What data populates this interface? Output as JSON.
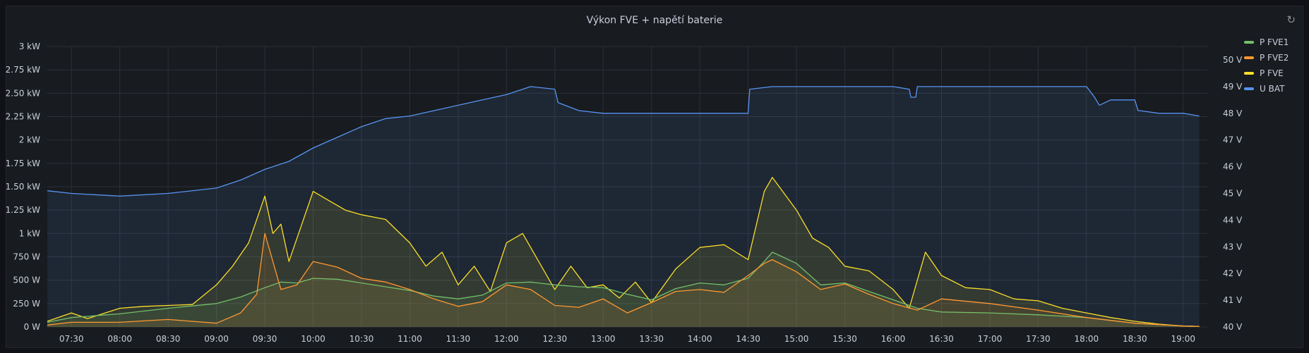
{
  "panel": {
    "title": "Výkon FVE + napětí baterie"
  },
  "icons": {
    "refresh": "refresh-icon"
  },
  "chart_data": {
    "type": "area",
    "y_left": {
      "min": 0,
      "max": 3000,
      "ticks": [
        "0 W",
        "250 W",
        "500 W",
        "750 W",
        "1 kW",
        "1.25 kW",
        "1.50 kW",
        "1.75 kW",
        "2 kW",
        "2.25 kW",
        "2.50 kW",
        "2.75 kW",
        "3 kW"
      ]
    },
    "y_right": {
      "min": 40,
      "max": 50.5,
      "ticks": [
        "40 V",
        "41 V",
        "42 V",
        "43 V",
        "44 V",
        "45 V",
        "46 V",
        "47 V",
        "48 V",
        "49 V",
        "50 V"
      ]
    },
    "x_range": [
      "07:15",
      "19:15"
    ],
    "x_ticks": [
      "07:30",
      "08:00",
      "08:30",
      "09:00",
      "09:30",
      "10:00",
      "10:30",
      "11:00",
      "11:30",
      "12:00",
      "12:30",
      "13:00",
      "13:30",
      "14:00",
      "14:30",
      "15:00",
      "15:30",
      "16:00",
      "16:30",
      "17:00",
      "17:30",
      "18:00",
      "18:30",
      "19:00"
    ],
    "legend": [
      "P FVE1",
      "P FVE2",
      "P FVE",
      "U BAT"
    ],
    "grid": true,
    "series": [
      {
        "name": "U BAT",
        "axis": "right",
        "color": "#5794f2",
        "x": [
          "07:15",
          "07:30",
          "08:00",
          "08:30",
          "09:00",
          "09:15",
          "09:30",
          "09:45",
          "10:00",
          "10:15",
          "10:30",
          "10:45",
          "11:00",
          "11:15",
          "11:30",
          "11:45",
          "12:00",
          "12:15",
          "12:30",
          "12:32",
          "12:45",
          "13:00",
          "13:30",
          "14:00",
          "14:30",
          "14:31",
          "14:45",
          "15:00",
          "15:30",
          "16:00",
          "16:10",
          "16:11",
          "16:14",
          "16:15",
          "16:30",
          "17:00",
          "17:30",
          "18:00",
          "18:05",
          "18:08",
          "18:15",
          "18:30",
          "18:32",
          "18:33",
          "18:45",
          "19:00",
          "19:10"
        ],
        "values": [
          45.1,
          45.0,
          44.9,
          45.0,
          45.2,
          45.5,
          45.9,
          46.2,
          46.7,
          47.1,
          47.5,
          47.8,
          47.9,
          48.1,
          48.3,
          48.5,
          48.7,
          49.0,
          48.9,
          48.4,
          48.1,
          48.0,
          48.0,
          48.0,
          48.0,
          48.9,
          49.0,
          49.0,
          49.0,
          49.0,
          48.9,
          48.6,
          48.6,
          49.0,
          49.0,
          49.0,
          49.0,
          49.0,
          48.6,
          48.3,
          48.5,
          48.5,
          48.1,
          48.1,
          48.0,
          48.0,
          47.9
        ]
      },
      {
        "name": "P FVE",
        "axis": "left",
        "color": "#fade2a",
        "x": [
          "07:15",
          "07:30",
          "07:40",
          "08:00",
          "08:15",
          "08:30",
          "08:45",
          "09:00",
          "09:10",
          "09:20",
          "09:30",
          "09:35",
          "09:40",
          "09:45",
          "10:00",
          "10:10",
          "10:20",
          "10:30",
          "10:45",
          "11:00",
          "11:10",
          "11:20",
          "11:30",
          "11:40",
          "11:50",
          "12:00",
          "12:10",
          "12:20",
          "12:30",
          "12:40",
          "12:50",
          "13:00",
          "13:10",
          "13:20",
          "13:30",
          "13:45",
          "14:00",
          "14:15",
          "14:30",
          "14:40",
          "14:45",
          "15:00",
          "15:10",
          "15:20",
          "15:30",
          "15:45",
          "16:00",
          "16:10",
          "16:20",
          "16:30",
          "16:45",
          "17:00",
          "17:15",
          "17:30",
          "17:45",
          "18:00",
          "18:15",
          "18:30",
          "18:45",
          "19:00",
          "19:10"
        ],
        "values": [
          60,
          150,
          90,
          200,
          220,
          230,
          240,
          450,
          650,
          900,
          1400,
          1000,
          1100,
          700,
          1450,
          1350,
          1250,
          1200,
          1150,
          900,
          650,
          800,
          450,
          650,
          380,
          900,
          1000,
          700,
          400,
          650,
          420,
          450,
          310,
          480,
          260,
          620,
          850,
          880,
          720,
          1450,
          1600,
          1250,
          950,
          850,
          650,
          600,
          400,
          200,
          800,
          550,
          420,
          400,
          300,
          280,
          200,
          150,
          100,
          60,
          30,
          10,
          5
        ]
      },
      {
        "name": "P FVE1",
        "axis": "left",
        "color": "#73bf69",
        "x": [
          "07:15",
          "07:30",
          "08:00",
          "08:30",
          "09:00",
          "09:15",
          "09:30",
          "09:40",
          "09:50",
          "10:00",
          "10:15",
          "10:30",
          "10:45",
          "11:00",
          "11:15",
          "11:30",
          "11:45",
          "12:00",
          "12:15",
          "12:30",
          "12:45",
          "13:00",
          "13:15",
          "13:30",
          "13:45",
          "14:00",
          "14:15",
          "14:30",
          "14:40",
          "14:45",
          "15:00",
          "15:15",
          "15:30",
          "15:45",
          "16:00",
          "16:15",
          "16:30",
          "17:00",
          "17:30",
          "18:00",
          "18:30",
          "19:00",
          "19:10"
        ],
        "values": [
          50,
          100,
          140,
          200,
          250,
          320,
          420,
          480,
          470,
          520,
          510,
          470,
          430,
          390,
          330,
          300,
          340,
          470,
          480,
          450,
          430,
          420,
          350,
          290,
          410,
          470,
          450,
          520,
          700,
          800,
          680,
          450,
          470,
          380,
          290,
          200,
          160,
          150,
          130,
          100,
          40,
          10,
          5
        ]
      },
      {
        "name": "P FVE2",
        "axis": "left",
        "color": "#ff9830",
        "x": [
          "07:15",
          "07:30",
          "08:00",
          "08:30",
          "09:00",
          "09:15",
          "09:25",
          "09:30",
          "09:40",
          "09:50",
          "10:00",
          "10:15",
          "10:30",
          "10:45",
          "11:00",
          "11:15",
          "11:30",
          "11:45",
          "12:00",
          "12:15",
          "12:30",
          "12:45",
          "13:00",
          "13:15",
          "13:30",
          "13:45",
          "14:00",
          "14:15",
          "14:30",
          "14:40",
          "14:45",
          "15:00",
          "15:15",
          "15:30",
          "15:45",
          "16:00",
          "16:15",
          "16:30",
          "17:00",
          "17:30",
          "18:00",
          "18:30",
          "19:00",
          "19:10"
        ],
        "values": [
          20,
          50,
          50,
          80,
          40,
          150,
          350,
          1000,
          400,
          450,
          700,
          640,
          520,
          480,
          400,
          300,
          220,
          270,
          450,
          400,
          230,
          210,
          300,
          150,
          260,
          380,
          400,
          370,
          550,
          680,
          720,
          590,
          400,
          460,
          350,
          250,
          180,
          300,
          250,
          180,
          100,
          40,
          10,
          5
        ]
      }
    ]
  }
}
